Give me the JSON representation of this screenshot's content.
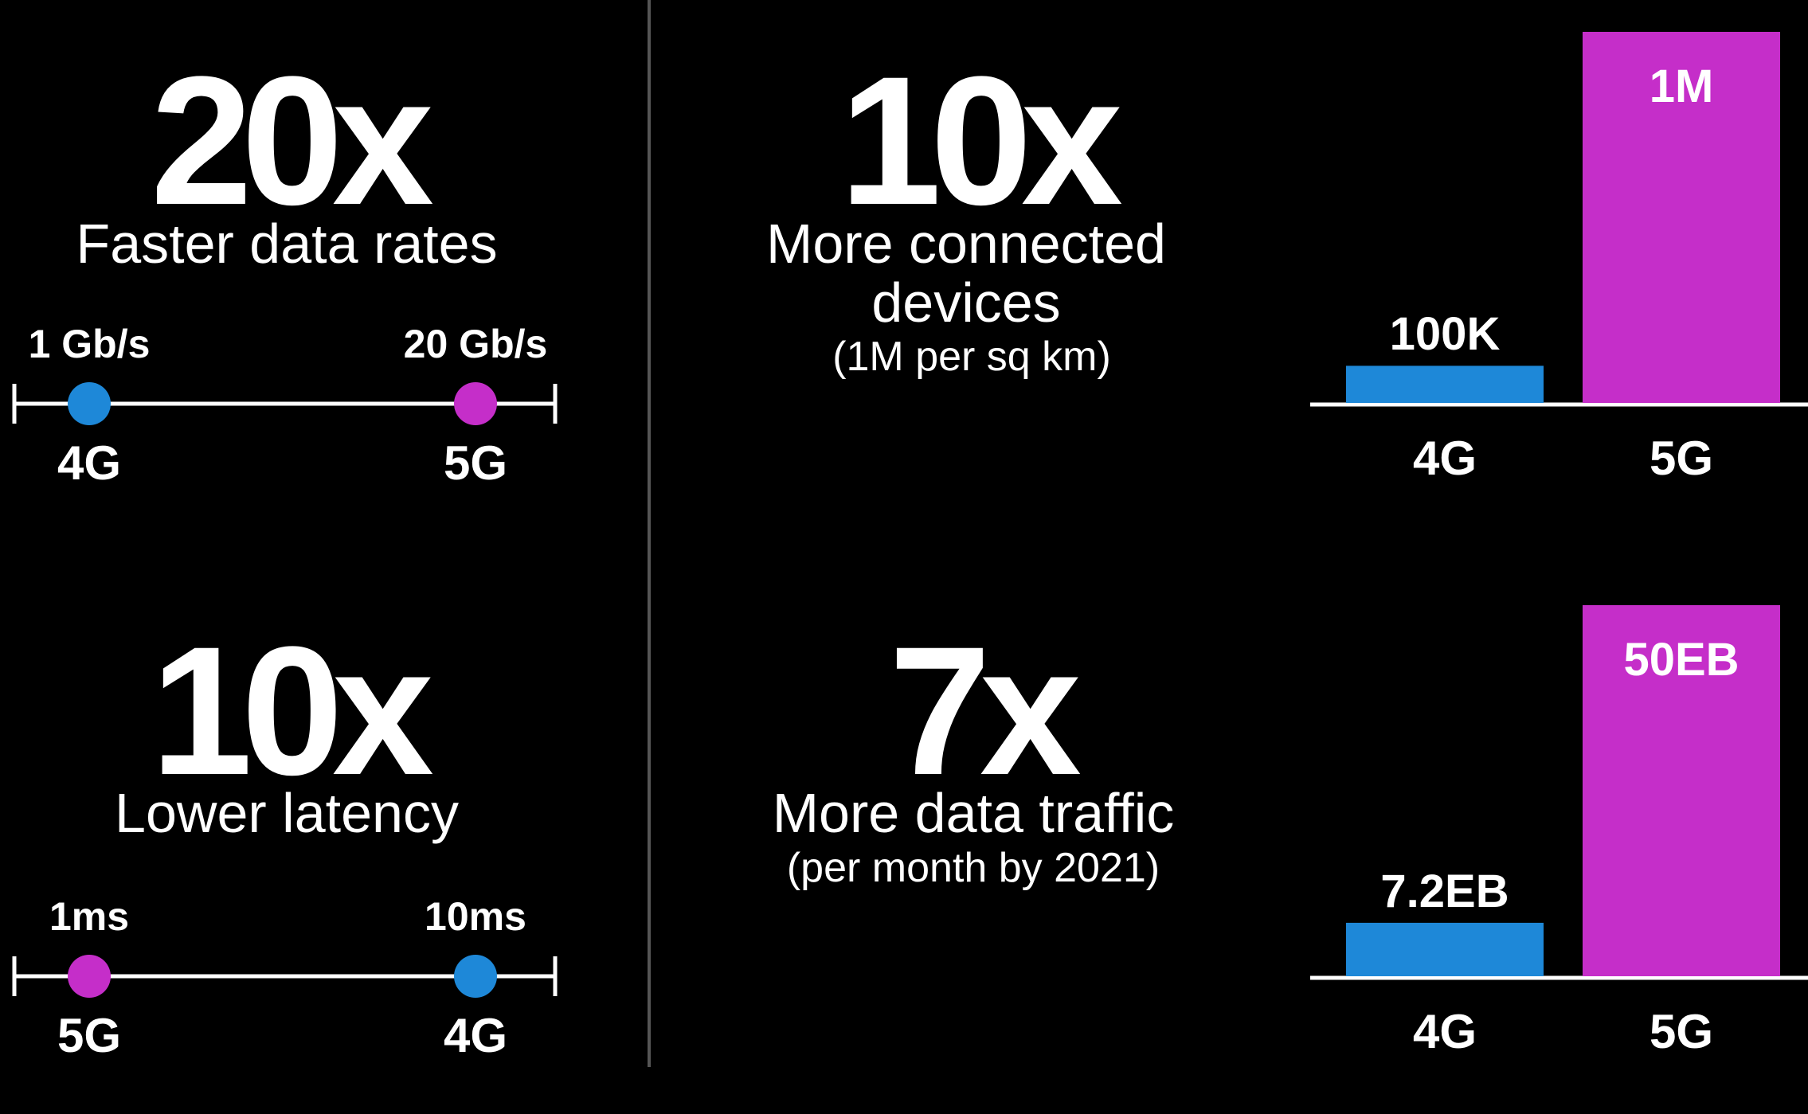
{
  "colors": {
    "background": "#000000",
    "text": "#ffffff",
    "g4": "#1e88d8",
    "g5": "#c52ec9",
    "line": "#ffffff",
    "divider": "#555555"
  },
  "panels": {
    "data_rates": {
      "big": "20x",
      "subtitle": "Faster data rates"
    },
    "latency": {
      "big": "10x",
      "subtitle": "Lower latency"
    },
    "devices": {
      "big": "10x",
      "subtitle": "More connected devices",
      "note": "(1M per sq km)"
    },
    "traffic": {
      "big": "7x",
      "subtitle": "More data traffic",
      "note": "(per month by 2021)"
    }
  },
  "chart_data": [
    {
      "type": "scatter",
      "name_ref": "data_rates",
      "points": [
        {
          "category": "4G",
          "value": 1,
          "label": "1 Gb/s",
          "color": "#1e88d8"
        },
        {
          "category": "5G",
          "value": 20,
          "label": "20 Gb/s",
          "color": "#c52ec9"
        }
      ]
    },
    {
      "type": "scatter",
      "name_ref": "latency",
      "points": [
        {
          "category": "5G",
          "value": 1,
          "label": "1ms",
          "color": "#c52ec9"
        },
        {
          "category": "4G",
          "value": 10,
          "label": "10ms",
          "color": "#1e88d8"
        }
      ]
    },
    {
      "type": "bar",
      "name_ref": "devices",
      "categories": [
        "4G",
        "5G"
      ],
      "values": [
        100000,
        1000000
      ],
      "labels": [
        "100K",
        "1M"
      ],
      "colors": [
        "#1e88d8",
        "#c52ec9"
      ]
    },
    {
      "type": "bar",
      "name_ref": "traffic",
      "categories": [
        "4G",
        "5G"
      ],
      "values": [
        7.2,
        50
      ],
      "labels": [
        "7.2EB",
        "50EB"
      ],
      "colors": [
        "#1e88d8",
        "#c52ec9"
      ]
    }
  ]
}
